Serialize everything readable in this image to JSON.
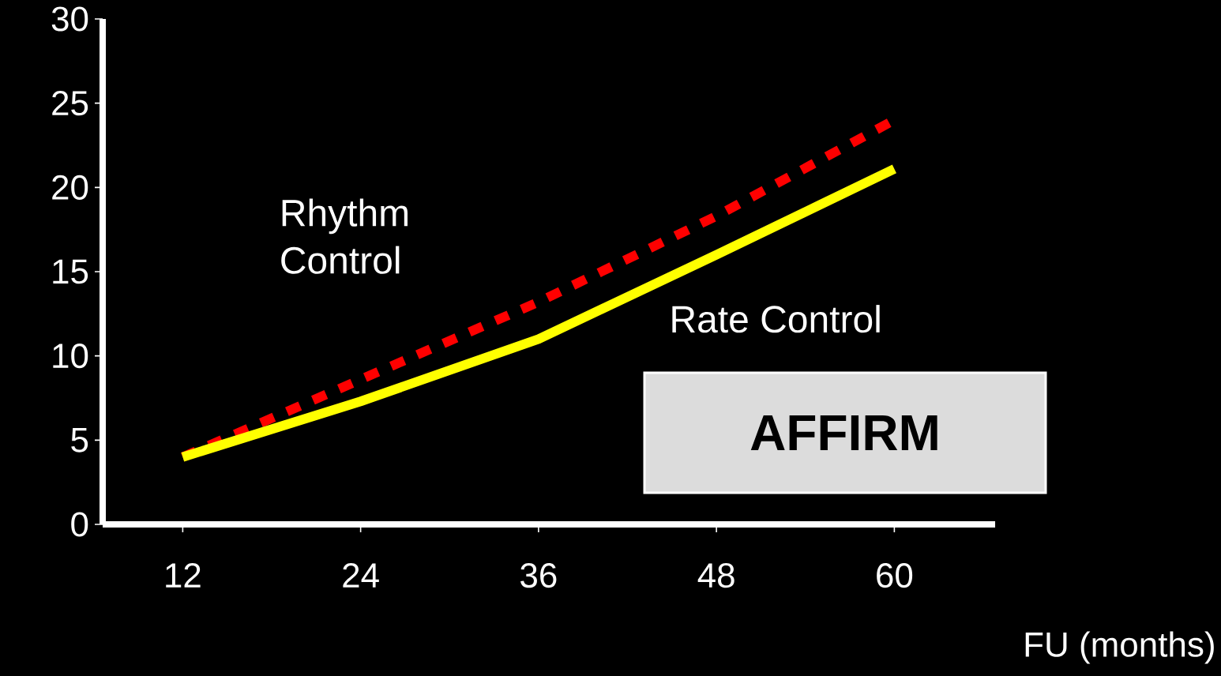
{
  "chart_data": {
    "type": "line",
    "xlabel": "FU (months)",
    "x": [
      12,
      24,
      36,
      48,
      60
    ],
    "series": [
      {
        "name": "Rhythm Control",
        "color": "#ff0000",
        "line_style": "dashed",
        "values": [
          4,
          8.6,
          13.2,
          18.3,
          24
        ]
      },
      {
        "name": "Rate Control",
        "color": "#ffff00",
        "line_style": "solid",
        "values": [
          4,
          7.3,
          11,
          16,
          21.1
        ]
      }
    ],
    "xlim": [
      6.6,
      66.8
    ],
    "ylim": [
      0,
      30
    ],
    "xticks": [
      12,
      24,
      36,
      48,
      60
    ],
    "yticks": [
      0,
      5,
      10,
      15,
      20,
      25,
      30
    ],
    "annotations": [
      "AFFIRM"
    ],
    "grid": false,
    "marker": "none"
  }
}
